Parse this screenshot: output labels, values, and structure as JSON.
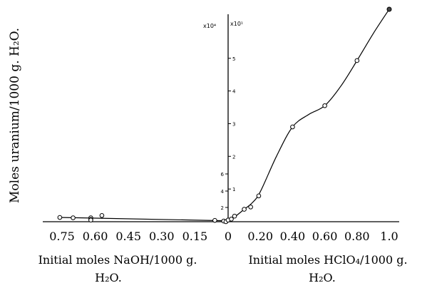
{
  "chart_data": {
    "type": "scatter",
    "ylabel": "Moles uranium/1000 g. H₂O.",
    "multiplier_left": "x10⁴",
    "multiplier_right": "x10¹",
    "xlabel_left": [
      "Initial moles NaOH/1000 g.",
      "H₂O."
    ],
    "xlabel_right": [
      "Initial moles HClO₄/1000 g.",
      "H₂O."
    ],
    "x_ticks_left": [
      "0.75",
      "0.60",
      "0.45",
      "0.30",
      "0.15"
    ],
    "x_ticks_right": [
      "0.20",
      "0.40",
      "0.60",
      "0.80",
      "1.0"
    ],
    "x_zero": "0",
    "y_ticks_small": [
      "2",
      "4",
      "6"
    ],
    "y_ticks_large": [
      "1",
      "2",
      "3",
      "4",
      "5"
    ],
    "series": [
      {
        "side": "NaOH",
        "points": [
          {
            "x": 0.76,
            "y": 0.13
          },
          {
            "x": 0.7,
            "y": 0.12
          },
          {
            "x": 0.62,
            "y": 0.12
          },
          {
            "x": 0.62,
            "y": 0.07
          },
          {
            "x": 0.62,
            "y": 0.05
          },
          {
            "x": 0.57,
            "y": 0.19
          },
          {
            "x": 0.06,
            "y": 0.04
          },
          {
            "x": 0.02,
            "y": 0.02
          },
          {
            "x": 0.01,
            "y": 0.0
          }
        ]
      },
      {
        "side": "HClO4",
        "points": [
          {
            "x": 0.0,
            "y": 0.05
          },
          {
            "x": 0.02,
            "y": 0.08
          },
          {
            "x": 0.04,
            "y": 0.17
          },
          {
            "x": 0.1,
            "y": 0.38
          },
          {
            "x": 0.14,
            "y": 0.45
          },
          {
            "x": 0.19,
            "y": 0.79
          },
          {
            "x": 0.4,
            "y": 2.9
          },
          {
            "x": 0.6,
            "y": 3.55
          },
          {
            "x": 0.8,
            "y": 4.93
          },
          {
            "x": 1.0,
            "y": 6.5
          }
        ]
      }
    ]
  }
}
